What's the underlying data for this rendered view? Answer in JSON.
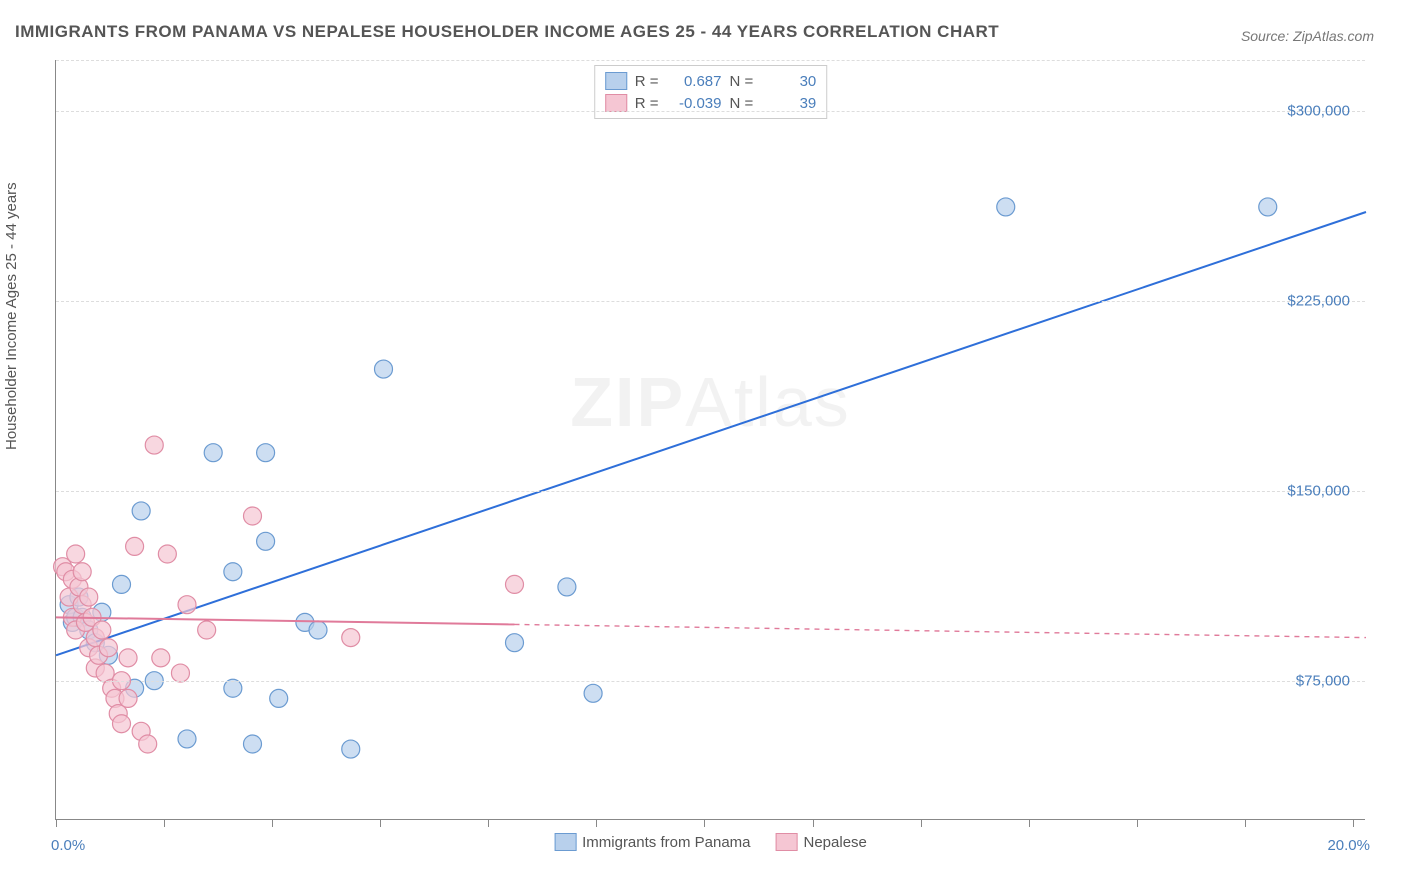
{
  "title": "IMMIGRANTS FROM PANAMA VS NEPALESE HOUSEHOLDER INCOME AGES 25 - 44 YEARS CORRELATION CHART",
  "source": "Source: ZipAtlas.com",
  "ylabel": "Householder Income Ages 25 - 44 years",
  "watermark_a": "ZIP",
  "watermark_b": "Atlas",
  "chart": {
    "type": "scatter",
    "background_color": "#ffffff",
    "grid_color": "#dddddd",
    "xlim": [
      0,
      20
    ],
    "ylim": [
      20000,
      320000
    ],
    "yticks": [
      75000,
      150000,
      225000,
      300000
    ],
    "ytick_labels": [
      "$75,000",
      "$150,000",
      "$225,000",
      "$300,000"
    ],
    "xtick_positions": [
      0,
      1.65,
      3.3,
      4.95,
      6.6,
      8.25,
      9.9,
      11.55,
      13.2,
      14.85,
      16.5,
      18.15,
      19.8
    ],
    "x_start_label": "0.0%",
    "x_end_label": "20.0%",
    "marker_radius": 9,
    "marker_stroke_width": 1.2,
    "line_width": 2,
    "series": [
      {
        "name": "Immigrants from Panama",
        "color_fill": "#b8d0ec",
        "color_stroke": "#6b9bd1",
        "line_color": "#2e6fd9",
        "R": "0.687",
        "N": "30",
        "points": [
          [
            0.2,
            105000
          ],
          [
            0.25,
            98000
          ],
          [
            0.3,
            100000
          ],
          [
            0.35,
            108000
          ],
          [
            0.4,
            100000
          ],
          [
            0.5,
            95000
          ],
          [
            0.6,
            90000
          ],
          [
            0.7,
            102000
          ],
          [
            0.8,
            85000
          ],
          [
            1.0,
            113000
          ],
          [
            1.2,
            72000
          ],
          [
            1.3,
            142000
          ],
          [
            1.5,
            75000
          ],
          [
            2.0,
            52000
          ],
          [
            2.4,
            165000
          ],
          [
            2.7,
            118000
          ],
          [
            2.7,
            72000
          ],
          [
            3.0,
            50000
          ],
          [
            3.2,
            165000
          ],
          [
            3.2,
            130000
          ],
          [
            3.4,
            68000
          ],
          [
            3.8,
            98000
          ],
          [
            4.0,
            95000
          ],
          [
            4.5,
            48000
          ],
          [
            5.0,
            198000
          ],
          [
            7.0,
            90000
          ],
          [
            7.8,
            112000
          ],
          [
            8.2,
            70000
          ],
          [
            14.5,
            262000
          ],
          [
            18.5,
            262000
          ]
        ],
        "trend": {
          "x1": 0,
          "y1": 85000,
          "x2": 20,
          "y2": 260000,
          "solid_until_x": 20
        }
      },
      {
        "name": "Nepalese",
        "color_fill": "#f5c6d3",
        "color_stroke": "#e08da5",
        "line_color": "#e07a9a",
        "R": "-0.039",
        "N": "39",
        "points": [
          [
            0.1,
            120000
          ],
          [
            0.15,
            118000
          ],
          [
            0.2,
            108000
          ],
          [
            0.25,
            115000
          ],
          [
            0.25,
            100000
          ],
          [
            0.3,
            125000
          ],
          [
            0.3,
            95000
          ],
          [
            0.35,
            112000
          ],
          [
            0.4,
            118000
          ],
          [
            0.4,
            105000
          ],
          [
            0.45,
            98000
          ],
          [
            0.5,
            108000
          ],
          [
            0.5,
            88000
          ],
          [
            0.55,
            100000
          ],
          [
            0.6,
            92000
          ],
          [
            0.6,
            80000
          ],
          [
            0.65,
            85000
          ],
          [
            0.7,
            95000
          ],
          [
            0.75,
            78000
          ],
          [
            0.8,
            88000
          ],
          [
            0.85,
            72000
          ],
          [
            0.9,
            68000
          ],
          [
            0.95,
            62000
          ],
          [
            1.0,
            75000
          ],
          [
            1.0,
            58000
          ],
          [
            1.1,
            84000
          ],
          [
            1.1,
            68000
          ],
          [
            1.2,
            128000
          ],
          [
            1.3,
            55000
          ],
          [
            1.4,
            50000
          ],
          [
            1.5,
            168000
          ],
          [
            1.6,
            84000
          ],
          [
            1.7,
            125000
          ],
          [
            1.9,
            78000
          ],
          [
            2.0,
            105000
          ],
          [
            2.3,
            95000
          ],
          [
            3.0,
            140000
          ],
          [
            4.5,
            92000
          ],
          [
            7.0,
            113000
          ]
        ],
        "trend": {
          "x1": 0,
          "y1": 100000,
          "x2": 20,
          "y2": 92000,
          "solid_until_x": 7.0
        }
      }
    ]
  },
  "legend_bottom": [
    "Immigrants from Panama",
    "Nepalese"
  ]
}
